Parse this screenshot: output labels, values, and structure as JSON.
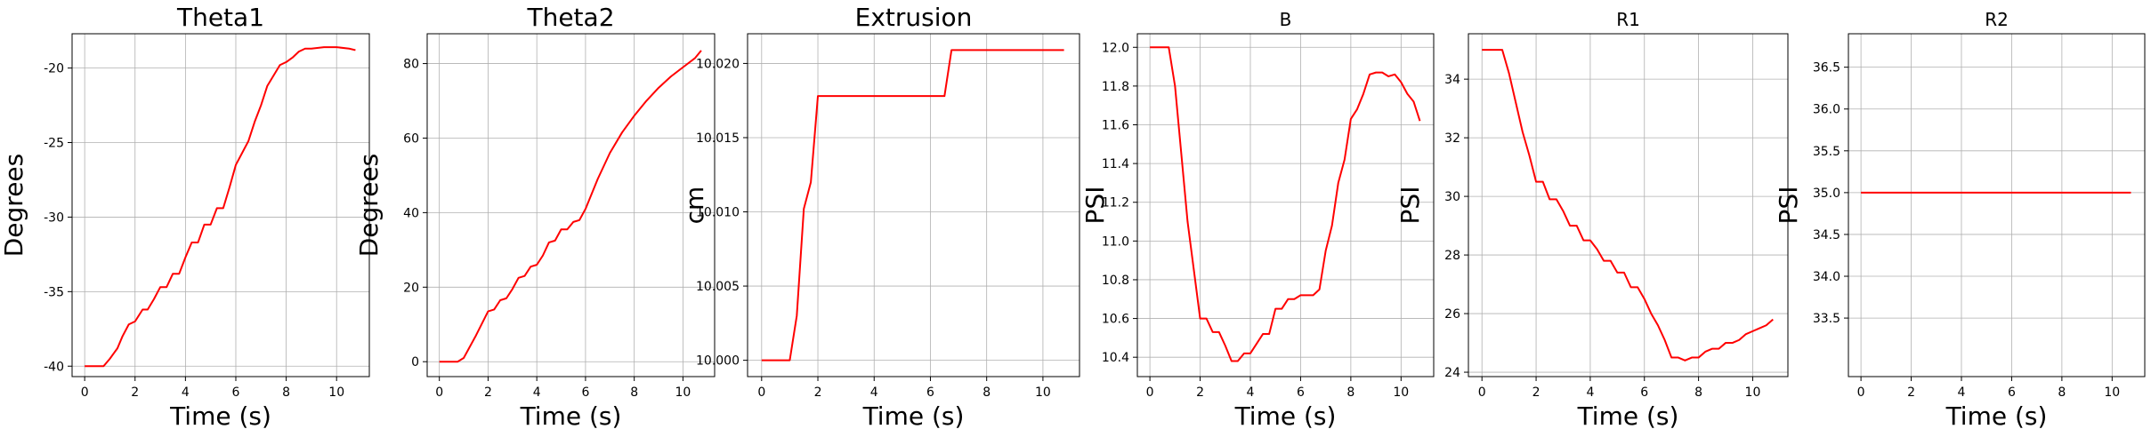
{
  "chart_data": [
    {
      "type": "line",
      "title": "Theta1",
      "xlabel": "Time (s)",
      "ylabel": "Degrees",
      "xlim": [
        -0.5,
        11.3
      ],
      "ylim": [
        -40.7,
        -17.7
      ],
      "xticks": [
        0,
        2,
        4,
        6,
        8,
        10
      ],
      "yticks": [
        -40,
        -35,
        -30,
        -25,
        -20
      ],
      "grid": true,
      "line_color": "#ff0000",
      "x": [
        0,
        0.75,
        1,
        1.3,
        1.5,
        1.75,
        2,
        2.3,
        2.5,
        2.75,
        3,
        3.25,
        3.5,
        3.75,
        4,
        4.25,
        4.5,
        4.75,
        5,
        5.25,
        5.5,
        5.75,
        6,
        6.25,
        6.5,
        6.75,
        7,
        7.25,
        7.5,
        7.75,
        8,
        8.25,
        8.5,
        8.75,
        9,
        9.5,
        10,
        10.5,
        10.75
      ],
      "y": [
        -40,
        -40,
        -39.5,
        -38.8,
        -38,
        -37.2,
        -37,
        -36.2,
        -36.2,
        -35.5,
        -34.7,
        -34.7,
        -33.8,
        -33.8,
        -32.7,
        -31.7,
        -31.7,
        -30.5,
        -30.5,
        -29.4,
        -29.4,
        -28,
        -26.5,
        -25.7,
        -24.9,
        -23.6,
        -22.5,
        -21.2,
        -20.5,
        -19.8,
        -19.6,
        -19.3,
        -18.9,
        -18.7,
        -18.7,
        -18.6,
        -18.6,
        -18.7,
        -18.8
      ]
    },
    {
      "type": "line",
      "title": "Theta2",
      "xlabel": "Time (s)",
      "ylabel": "Degrees",
      "xlim": [
        -0.5,
        11.3
      ],
      "ylim": [
        -4,
        88
      ],
      "xticks": [
        0,
        2,
        4,
        6,
        8,
        10
      ],
      "yticks": [
        0,
        20,
        40,
        60,
        80
      ],
      "grid": true,
      "line_color": "#ff0000",
      "x": [
        0,
        0.75,
        1,
        1.5,
        2,
        2.25,
        2.5,
        2.75,
        3,
        3.25,
        3.5,
        3.75,
        4,
        4.25,
        4.5,
        4.75,
        5,
        5.25,
        5.5,
        5.75,
        6,
        6.5,
        7,
        7.5,
        8,
        8.5,
        9,
        9.5,
        10,
        10.5,
        10.75
      ],
      "y": [
        0,
        0,
        1,
        7,
        13.5,
        14,
        16.5,
        17,
        19.5,
        22.5,
        23,
        25.5,
        26,
        28.5,
        32,
        32.5,
        35.5,
        35.5,
        37.5,
        38,
        41,
        49,
        56,
        61.5,
        66,
        70,
        73.5,
        76.5,
        79,
        81.5,
        83.5
      ]
    },
    {
      "type": "line",
      "title": "Extrusion",
      "xlabel": "Time (s)",
      "ylabel": "cm",
      "xlim": [
        -0.5,
        11.3
      ],
      "ylim": [
        9.9989,
        10.022
      ],
      "xticks": [
        0,
        2,
        4,
        6,
        8,
        10
      ],
      "yticks": [
        10.0,
        10.005,
        10.01,
        10.015,
        10.02
      ],
      "ytick_labels": [
        "10.000",
        "10.005",
        "10.010",
        "10.015",
        "10.020"
      ],
      "grid": true,
      "line_color": "#ff0000",
      "x": [
        0,
        1,
        1.25,
        1.5,
        1.75,
        2,
        6.5,
        6.75,
        10.75
      ],
      "y": [
        10.0,
        10.0,
        10.003,
        10.0102,
        10.012,
        10.0178,
        10.0178,
        10.0209,
        10.0209
      ]
    },
    {
      "type": "line",
      "title": "B",
      "xlabel": "Time (s)",
      "ylabel": "PSI",
      "xlim": [
        -0.5,
        11.3
      ],
      "ylim": [
        10.3,
        12.07
      ],
      "xticks": [
        0,
        2,
        4,
        6,
        8,
        10
      ],
      "yticks": [
        10.4,
        10.6,
        10.8,
        11.0,
        11.2,
        11.4,
        11.6,
        11.8,
        12.0
      ],
      "ytick_labels": [
        "10.4",
        "10.6",
        "10.8",
        "11.0",
        "11.2",
        "11.4",
        "11.6",
        "11.8",
        "12.0"
      ],
      "grid": true,
      "line_color": "#ff0000",
      "x": [
        0,
        0.75,
        1,
        1.25,
        1.5,
        1.75,
        2,
        2.25,
        2.5,
        2.75,
        3,
        3.25,
        3.5,
        3.75,
        4,
        4.25,
        4.5,
        4.75,
        5,
        5.25,
        5.5,
        5.75,
        6,
        6.25,
        6.5,
        6.75,
        7,
        7.25,
        7.5,
        7.75,
        8,
        8.25,
        8.5,
        8.75,
        9,
        9.25,
        9.5,
        9.75,
        10,
        10.25,
        10.5,
        10.75
      ],
      "y": [
        12.0,
        12.0,
        11.8,
        11.45,
        11.1,
        10.85,
        10.6,
        10.6,
        10.53,
        10.53,
        10.46,
        10.38,
        10.38,
        10.42,
        10.42,
        10.47,
        10.52,
        10.52,
        10.65,
        10.65,
        10.7,
        10.7,
        10.72,
        10.72,
        10.72,
        10.75,
        10.95,
        11.08,
        11.3,
        11.42,
        11.63,
        11.68,
        11.76,
        11.86,
        11.87,
        11.87,
        11.85,
        11.86,
        11.82,
        11.76,
        11.72,
        11.62
      ]
    },
    {
      "type": "line",
      "title": "R1",
      "xlabel": "Time (s)",
      "ylabel": "PSI",
      "xlim": [
        -0.5,
        11.3
      ],
      "ylim": [
        23.85,
        35.55
      ],
      "xticks": [
        0,
        2,
        4,
        6,
        8,
        10
      ],
      "yticks": [
        24,
        26,
        28,
        30,
        32,
        34
      ],
      "grid": true,
      "line_color": "#ff0000",
      "x": [
        0,
        0.75,
        1,
        1.25,
        1.5,
        1.75,
        2,
        2.25,
        2.5,
        2.75,
        3,
        3.25,
        3.5,
        3.75,
        4,
        4.25,
        4.5,
        4.75,
        5,
        5.25,
        5.5,
        5.75,
        6,
        6.25,
        6.5,
        6.75,
        7,
        7.25,
        7.5,
        7.75,
        8,
        8.25,
        8.5,
        8.75,
        9,
        9.25,
        9.5,
        9.75,
        10,
        10.25,
        10.5,
        10.75
      ],
      "y": [
        35,
        35,
        34.2,
        33.2,
        32.2,
        31.4,
        30.5,
        30.5,
        29.9,
        29.9,
        29.5,
        29.0,
        29.0,
        28.5,
        28.5,
        28.2,
        27.8,
        27.8,
        27.4,
        27.4,
        26.9,
        26.9,
        26.5,
        26.0,
        25.6,
        25.1,
        24.5,
        24.5,
        24.4,
        24.5,
        24.5,
        24.7,
        24.8,
        24.8,
        25.0,
        25.0,
        25.1,
        25.3,
        25.4,
        25.5,
        25.6,
        25.8
      ]
    },
    {
      "type": "line",
      "title": "R2",
      "xlabel": "Time (s)",
      "ylabel": "PSI",
      "xlim": [
        -0.5,
        11.3
      ],
      "ylim": [
        32.8,
        36.9
      ],
      "xticks": [
        0,
        2,
        4,
        6,
        8,
        10
      ],
      "yticks": [
        33.5,
        34.0,
        34.5,
        35.0,
        35.5,
        36.0,
        36.5
      ],
      "ytick_labels": [
        "33.5",
        "34.0",
        "34.5",
        "35.0",
        "35.5",
        "36.0",
        "36.5"
      ],
      "grid": true,
      "line_color": "#ff0000",
      "x": [
        0,
        10.75
      ],
      "y": [
        35,
        35
      ]
    }
  ]
}
